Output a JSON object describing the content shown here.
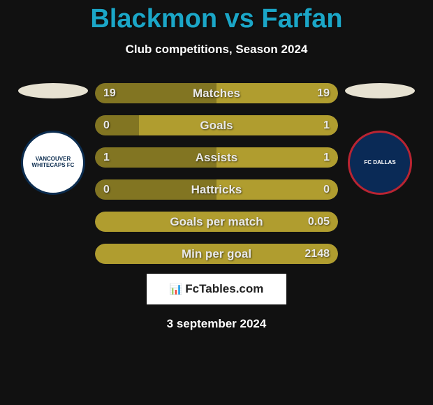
{
  "colors": {
    "background": "#111111",
    "title": "#1ba6c7",
    "subtitle": "#ffffff",
    "ellipse": "#e7e2d2",
    "bar_track": "#3a3a3a",
    "bar_left": "#827522",
    "bar_right": "#b09d2f",
    "bar_text": "#e9e9e9",
    "attribution_bg": "#ffffff",
    "attribution_text": "#222222",
    "date_text": "#ffffff"
  },
  "title": "Blackmon vs Farfan",
  "subtitle": "Club competitions, Season 2024",
  "clubs": {
    "left": {
      "name": "VANCOUVER WHITECAPS FC",
      "badge_bg": "#ffffff",
      "badge_border": "#0b2c4f",
      "badge_text_color": "#0b2c4f"
    },
    "right": {
      "name": "FC DALLAS",
      "badge_bg": "#0a2a56",
      "badge_border": "#b92432",
      "badge_text_color": "#ffffff"
    }
  },
  "stats": [
    {
      "label": "Matches",
      "left_val": "19",
      "right_val": "19",
      "left_pct": 50,
      "right_pct": 50
    },
    {
      "label": "Goals",
      "left_val": "0",
      "right_val": "1",
      "left_pct": 18,
      "right_pct": 82
    },
    {
      "label": "Assists",
      "left_val": "1",
      "right_val": "1",
      "left_pct": 50,
      "right_pct": 50
    },
    {
      "label": "Hattricks",
      "left_val": "0",
      "right_val": "0",
      "left_pct": 50,
      "right_pct": 50
    },
    {
      "label": "Goals per match",
      "left_val": "",
      "right_val": "0.05",
      "left_pct": 0,
      "right_pct": 100
    },
    {
      "label": "Min per goal",
      "left_val": "",
      "right_val": "2148",
      "left_pct": 0,
      "right_pct": 100
    }
  ],
  "attribution": "FcTables.com",
  "date": "3 september 2024"
}
